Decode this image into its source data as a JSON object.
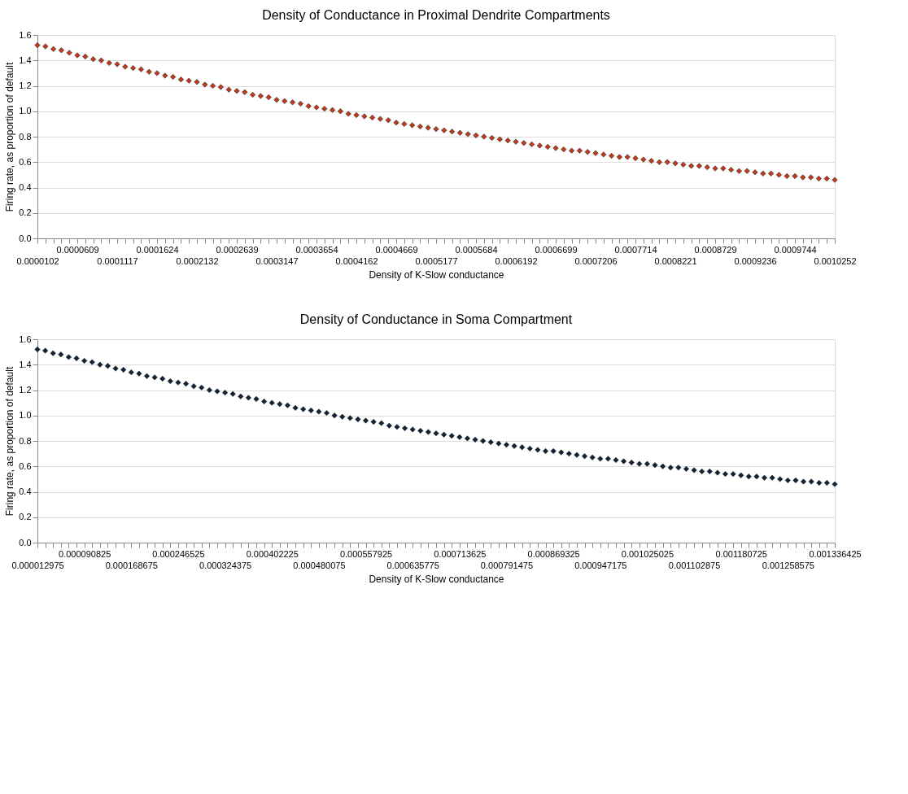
{
  "chart_data": [
    {
      "type": "scatter",
      "title": "Density of Conductance in Proximal Dendrite Compartments",
      "xlabel": "Density of K-Slow conductance",
      "ylabel": "Firing rate, as proportion of default",
      "marker": "diamond",
      "grid": "y",
      "ylim": [
        0,
        1.6
      ],
      "yticks": [
        {
          "value": 0,
          "label": "0.0"
        },
        {
          "value": 0.2,
          "label": "0.2"
        },
        {
          "value": 0.4,
          "label": "0.4"
        },
        {
          "value": 0.6,
          "label": "0.6"
        },
        {
          "value": 0.8,
          "label": "0.8"
        },
        {
          "value": 1,
          "label": "1.0"
        },
        {
          "value": 1.2,
          "label": "1.2"
        },
        {
          "value": 1.4,
          "label": "1.4"
        },
        {
          "value": 1.6,
          "label": "1.6"
        }
      ],
      "categories": [
        "0.0000102",
        null,
        null,
        null,
        null,
        "0.0000609",
        null,
        null,
        null,
        null,
        "0.0001117",
        null,
        null,
        null,
        null,
        "0.0001624",
        null,
        null,
        null,
        null,
        "0.0002132",
        null,
        null,
        null,
        null,
        "0.0002639",
        null,
        null,
        null,
        null,
        "0.0003147",
        null,
        null,
        null,
        null,
        "0.0003654",
        null,
        null,
        null,
        null,
        "0.0004162",
        null,
        null,
        null,
        null,
        "0.0004669",
        null,
        null,
        null,
        null,
        "0.0005177",
        null,
        null,
        null,
        null,
        "0.0005684",
        null,
        null,
        null,
        null,
        "0.0006192",
        null,
        null,
        null,
        null,
        "0.0006699",
        null,
        null,
        null,
        null,
        "0.0007206",
        null,
        null,
        null,
        null,
        "0.0007714",
        null,
        null,
        null,
        null,
        "0.0008221",
        null,
        null,
        null,
        null,
        "0.0008729",
        null,
        null,
        null,
        null,
        "0.0009236",
        null,
        null,
        null,
        null,
        "0.0009744",
        null,
        null,
        null,
        null,
        "0.0010252"
      ],
      "series": [
        {
          "color": "#c0391b",
          "values": [
            1.52,
            1.51,
            1.49,
            1.48,
            1.46,
            1.44,
            1.43,
            1.41,
            1.4,
            1.38,
            1.37,
            1.35,
            1.34,
            1.33,
            1.31,
            1.3,
            1.28,
            1.27,
            1.25,
            1.24,
            1.23,
            1.21,
            1.2,
            1.19,
            1.17,
            1.16,
            1.15,
            1.13,
            1.12,
            1.11,
            1.09,
            1.08,
            1.07,
            1.06,
            1.04,
            1.03,
            1.02,
            1.01,
            1.0,
            0.98,
            0.97,
            0.96,
            0.95,
            0.94,
            0.93,
            0.91,
            0.9,
            0.89,
            0.88,
            0.87,
            0.86,
            0.85,
            0.84,
            0.83,
            0.82,
            0.81,
            0.8,
            0.79,
            0.78,
            0.77,
            0.76,
            0.75,
            0.74,
            0.73,
            0.72,
            0.71,
            0.7,
            0.69,
            0.69,
            0.68,
            0.67,
            0.66,
            0.65,
            0.64,
            0.64,
            0.63,
            0.62,
            0.61,
            0.6,
            0.6,
            0.59,
            0.58,
            0.57,
            0.57,
            0.56,
            0.55,
            0.55,
            0.54,
            0.53,
            0.53,
            0.52,
            0.51,
            0.51,
            0.5,
            0.49,
            0.49,
            0.48,
            0.48,
            0.47,
            0.47,
            0.46
          ]
        }
      ]
    },
    {
      "type": "scatter",
      "title": "Density of Conductance in Soma Compartment",
      "xlabel": "Density of K-Slow conductance",
      "ylabel": "Firing rate, as proportion of default",
      "marker": "diamond",
      "grid": "y",
      "ylim": [
        0,
        1.6
      ],
      "yticks": [
        {
          "value": 0,
          "label": "0.0"
        },
        {
          "value": 0.2,
          "label": "0.2"
        },
        {
          "value": 0.4,
          "label": "0.4"
        },
        {
          "value": 0.6,
          "label": "0.6"
        },
        {
          "value": 0.8,
          "label": "0.8"
        },
        {
          "value": 1,
          "label": "1.0"
        },
        {
          "value": 1.2,
          "label": "1.2"
        },
        {
          "value": 1.4,
          "label": "1.4"
        },
        {
          "value": 1.6,
          "label": "1.6"
        }
      ],
      "categories": [
        "0.000012975",
        null,
        null,
        null,
        null,
        null,
        "0.000090825",
        null,
        null,
        null,
        null,
        null,
        "0.000168675",
        null,
        null,
        null,
        null,
        null,
        "0.000246525",
        null,
        null,
        null,
        null,
        null,
        "0.000324375",
        null,
        null,
        null,
        null,
        null,
        "0.000402225",
        null,
        null,
        null,
        null,
        null,
        "0.000480075",
        null,
        null,
        null,
        null,
        null,
        "0.000557925",
        null,
        null,
        null,
        null,
        null,
        "0.000635775",
        null,
        null,
        null,
        null,
        null,
        "0.000713625",
        null,
        null,
        null,
        null,
        null,
        "0.000791475",
        null,
        null,
        null,
        null,
        null,
        "0.000869325",
        null,
        null,
        null,
        null,
        null,
        "0.000947175",
        null,
        null,
        null,
        null,
        null,
        "0.001025025",
        null,
        null,
        null,
        null,
        null,
        "0.001102875",
        null,
        null,
        null,
        null,
        null,
        "0.001180725",
        null,
        null,
        null,
        null,
        null,
        "0.001258575",
        null,
        null,
        null,
        null,
        null,
        "0.001336425"
      ],
      "series": [
        {
          "color": "#0f2238",
          "values": [
            1.52,
            1.51,
            1.49,
            1.48,
            1.46,
            1.45,
            1.43,
            1.42,
            1.4,
            1.39,
            1.37,
            1.36,
            1.34,
            1.33,
            1.31,
            1.3,
            1.29,
            1.27,
            1.26,
            1.25,
            1.23,
            1.22,
            1.2,
            1.19,
            1.18,
            1.17,
            1.15,
            1.14,
            1.13,
            1.11,
            1.1,
            1.09,
            1.08,
            1.06,
            1.05,
            1.04,
            1.03,
            1.02,
            1.0,
            0.99,
            0.98,
            0.97,
            0.96,
            0.95,
            0.94,
            0.92,
            0.91,
            0.9,
            0.89,
            0.88,
            0.87,
            0.86,
            0.85,
            0.84,
            0.83,
            0.82,
            0.81,
            0.8,
            0.79,
            0.78,
            0.77,
            0.76,
            0.75,
            0.74,
            0.73,
            0.72,
            0.72,
            0.71,
            0.7,
            0.69,
            0.68,
            0.67,
            0.66,
            0.66,
            0.65,
            0.64,
            0.63,
            0.62,
            0.62,
            0.61,
            0.6,
            0.59,
            0.59,
            0.58,
            0.57,
            0.56,
            0.56,
            0.55,
            0.54,
            0.54,
            0.53,
            0.52,
            0.52,
            0.51,
            0.51,
            0.5,
            0.49,
            0.49,
            0.48,
            0.48,
            0.47,
            0.47,
            0.46
          ]
        }
      ]
    }
  ]
}
